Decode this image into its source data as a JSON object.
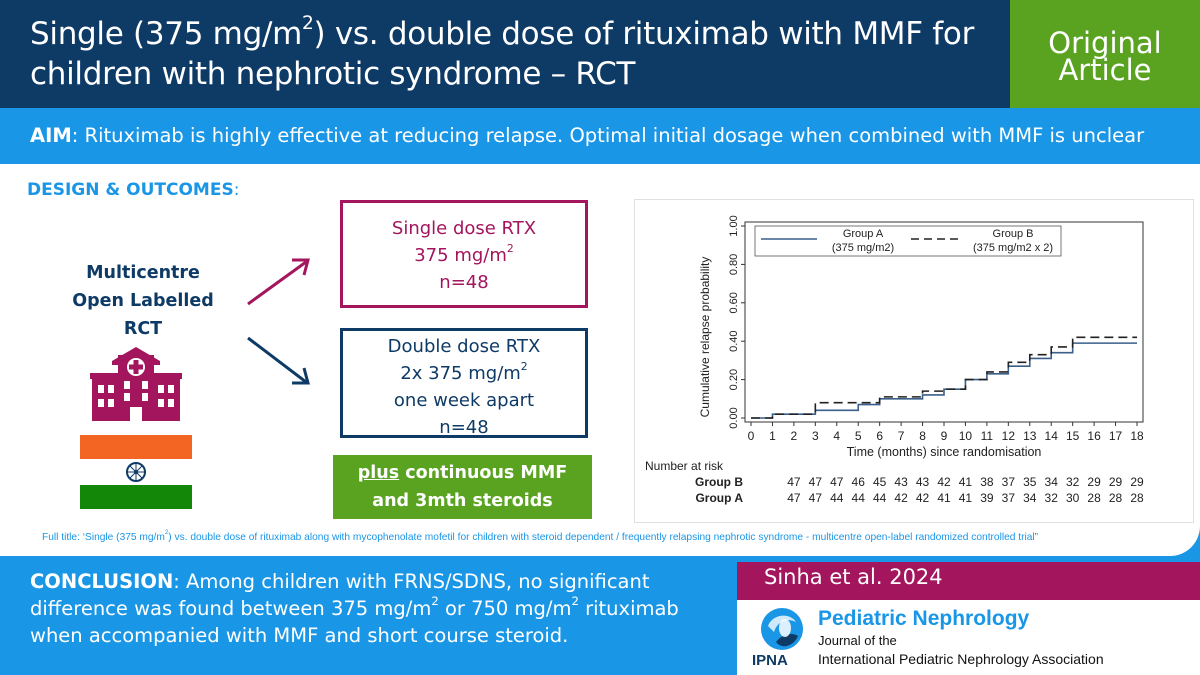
{
  "header": {
    "title_part1": "Single (375 mg/m",
    "title_sup": "2",
    "title_part2": ") vs. double dose of rituximab with MMF for children with nephrotic syndrome – RCT",
    "badge_line1": "Original",
    "badge_line2": "Article"
  },
  "aim": {
    "label": "AIM",
    "text": ": Rituximab is highly effective at reducing relapse. Optimal initial dosage when combined with MMF is unclear"
  },
  "design": {
    "label": "DESIGN & OUTCOMES",
    "colon": ":",
    "study_line1": "Multicentre",
    "study_line2": "Open Labelled",
    "study_line3": "RCT"
  },
  "arms": {
    "single_line1": "Single dose RTX",
    "single_line2_pre": "375 mg/m",
    "single_line2_sup": "2",
    "single_line3": "n=48",
    "double_line1": "Double dose RTX",
    "double_line2_pre": "2x 375 mg/m",
    "double_line2_sup": "2",
    "double_line3": "one week apart",
    "double_line4": "n=48",
    "plus_word": "plus",
    "plus_rest": " continuous MMF",
    "plus_line2": "and 3mth steroids"
  },
  "chart_data": {
    "type": "line",
    "ylabel": "Cumulative relapse probability",
    "xlabel": "Time (months) since randomisation",
    "ylim": [
      0,
      1.0
    ],
    "xlim": [
      0,
      18
    ],
    "y_ticks": [
      "0.00",
      "0.20",
      "0.40",
      "0.60",
      "0.80",
      "1.00"
    ],
    "x_ticks": [
      "0",
      "1",
      "2",
      "3",
      "4",
      "5",
      "6",
      "7",
      "8",
      "9",
      "10",
      "11",
      "12",
      "13",
      "14",
      "15",
      "16",
      "17",
      "18"
    ],
    "legend_placement": "top",
    "legend": [
      {
        "name": "Group A",
        "sub": "(375 mg/m2)",
        "style": "solid"
      },
      {
        "name": "Group B",
        "sub": "(375 mg/m2  x  2)",
        "style": "dashed"
      }
    ],
    "series": [
      {
        "name": "Group A",
        "color": "#3a5f8a",
        "style": "solid",
        "x": [
          0,
          1,
          3,
          5,
          6,
          8,
          9,
          10,
          11,
          12,
          13,
          14,
          15,
          18
        ],
        "y": [
          0.0,
          0.02,
          0.04,
          0.07,
          0.1,
          0.12,
          0.15,
          0.2,
          0.23,
          0.27,
          0.31,
          0.34,
          0.39,
          0.39
        ]
      },
      {
        "name": "Group B",
        "color": "#222222",
        "style": "dashed",
        "x": [
          0,
          1,
          3,
          6,
          8,
          9,
          10,
          11,
          12,
          13,
          14,
          15,
          18
        ],
        "y": [
          0.0,
          0.02,
          0.08,
          0.11,
          0.14,
          0.15,
          0.2,
          0.24,
          0.29,
          0.33,
          0.37,
          0.42,
          0.42
        ]
      }
    ],
    "at_risk_title": "Number at risk",
    "at_risk": [
      {
        "group": "Group B",
        "values": [
          "47",
          "47",
          "47",
          "46",
          "45",
          "43",
          "43",
          "42",
          "41",
          "38",
          "37",
          "35",
          "34",
          "32",
          "29",
          "29",
          "29"
        ]
      },
      {
        "group": "Group A",
        "values": [
          "47",
          "47",
          "44",
          "44",
          "44",
          "42",
          "42",
          "41",
          "41",
          "39",
          "37",
          "34",
          "32",
          "30",
          "28",
          "28",
          "28"
        ]
      }
    ]
  },
  "full_title": {
    "pre": "Full title: ‘Single (375 mg/m",
    "sup": "2",
    "post": ")  vs. double dose of rituximab along with mycophenolate mofetil for children with steroid dependent  / frequently relapsing nephrotic syndrome - multicentre open-label randomized controlled trial”"
  },
  "conclusion": {
    "label": "CONCLUSION",
    "part1": ": Among children with FRNS/SDNS, no significant difference was found between 375 mg/m",
    "sup1": "2",
    "part2": " or 750 mg/m",
    "sup2": "2",
    "part3": " rituximab when accompanied with MMF and short course steroid."
  },
  "citation": {
    "author": "Sinha et al. 2024"
  },
  "journal": {
    "name": "Pediatric Nephrology",
    "sub1": "Journal of the",
    "sub2": "International  Pediatric Nephrology Association",
    "abbr": "IPNA"
  },
  "colors": {
    "navy": "#0e3a66",
    "blue": "#1a96e6",
    "green": "#5aa321",
    "magenta": "#a3155c",
    "india_orange": "#f26522",
    "india_green": "#138808"
  },
  "icons": [
    "arrow-up-right-icon",
    "arrow-down-right-icon",
    "hospital-icon",
    "india-flag-icon",
    "ipna-globe-logo"
  ]
}
